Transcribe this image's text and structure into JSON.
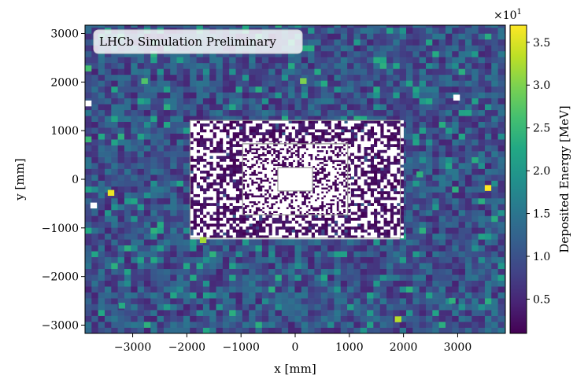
{
  "chart_data": {
    "type": "heatmap",
    "annotation": "LHCb Simulation Preliminary",
    "xlabel": "x [mm]",
    "ylabel": "y [mm]",
    "colorbar_label": "Deposited Energy [MeV]",
    "colorbar_multiplier": "×10",
    "colorbar_multiplier_exp": "1",
    "colormap": "viridis",
    "xlim": [
      -3880,
      3880
    ],
    "ylim": [
      -3170,
      3170
    ],
    "xticks": [
      -3000,
      -2000,
      -1000,
      0,
      1000,
      2000,
      3000
    ],
    "xtick_labels": [
      "−3000",
      "−2000",
      "−1000",
      "0",
      "1000",
      "2000",
      "3000"
    ],
    "yticks": [
      -3000,
      -2000,
      -1000,
      0,
      1000,
      2000,
      3000
    ],
    "ytick_labels": [
      "−3000",
      "−2000",
      "−1000",
      "0",
      "1000",
      "2000",
      "3000"
    ],
    "color_range": [
      0.1,
      3.7
    ],
    "colorbar_ticks": [
      0.5,
      1.0,
      1.5,
      2.0,
      2.5,
      3.0,
      3.5
    ],
    "colorbar_tick_labels": [
      "0.5",
      "1.0",
      "1.5",
      "2.0",
      "2.5",
      "3.0",
      "3.5"
    ],
    "regions": [
      {
        "name": "outer",
        "x_range": [
          -3880,
          3880
        ],
        "y_range": [
          -3170,
          3170
        ],
        "cell_size_mm": 121,
        "typical_value": 1.0
      },
      {
        "name": "middle",
        "x_range": [
          -1940,
          1940
        ],
        "y_range": [
          -1210,
          1210
        ],
        "cell_size_mm": 60.6,
        "typical_value": 0.3
      },
      {
        "name": "inner",
        "x_range": [
          -970,
          970
        ],
        "y_range": [
          -730,
          730
        ],
        "cell_size_mm": 40.4,
        "typical_value": 0.2
      },
      {
        "name": "beam_hole",
        "x_range": [
          -320,
          320
        ],
        "y_range": [
          -240,
          240
        ],
        "cell_size_mm": 0,
        "typical_value": null
      }
    ],
    "hot_cells": [
      {
        "x": -3400,
        "y": -280,
        "value": 3.6
      },
      {
        "x": -2780,
        "y": 2020,
        "value": 2.7
      },
      {
        "x": -1700,
        "y": -1250,
        "value": 3.2
      },
      {
        "x": 150,
        "y": 2020,
        "value": 3.0
      },
      {
        "x": 1900,
        "y": -2880,
        "value": 3.3
      },
      {
        "x": 3560,
        "y": -180,
        "value": 3.7
      },
      {
        "x": -3820,
        "y": 2280,
        "value": 2.6
      },
      {
        "x": -3820,
        "y": 820,
        "value": 2.5
      },
      {
        "x": 2900,
        "y": -2500,
        "value": 2.4
      },
      {
        "x": -3200,
        "y": -2600,
        "value": 2.3
      },
      {
        "x": 2300,
        "y": 100,
        "value": 2.4
      }
    ],
    "empty_cells": [
      {
        "x": -3820,
        "y": 1560
      },
      {
        "x": -3720,
        "y": -540
      },
      {
        "x": 2980,
        "y": 1680
      }
    ]
  }
}
